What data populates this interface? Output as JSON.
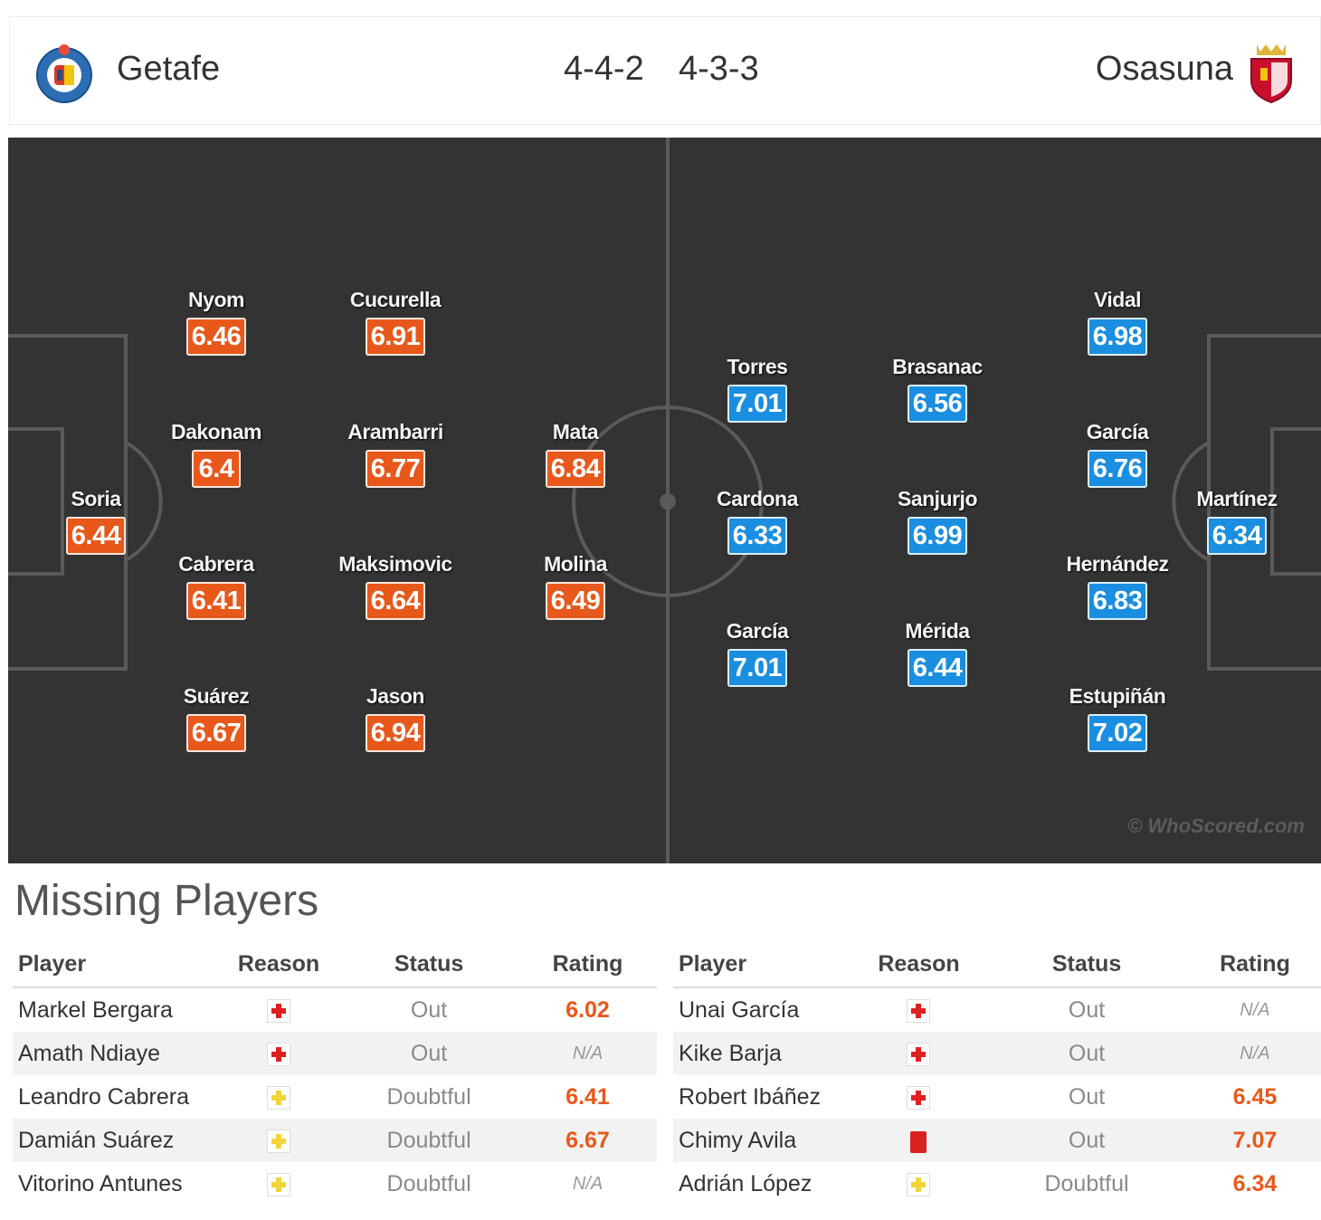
{
  "header": {
    "home_team": "Getafe",
    "home_formation": "4-4-2",
    "away_formation": "4-3-3",
    "away_team": "Osasuna"
  },
  "colors": {
    "home_rating_bg": "#e8581b",
    "away_rating_bg": "#1a8ee0",
    "pitch_bg": "#333333"
  },
  "home_players": [
    {
      "name": "Nyom",
      "rating": "6.46"
    },
    {
      "name": "Cucurella",
      "rating": "6.91"
    },
    {
      "name": "Dakonam",
      "rating": "6.4"
    },
    {
      "name": "Arambarri",
      "rating": "6.77"
    },
    {
      "name": "Mata",
      "rating": "6.84"
    },
    {
      "name": "Soria",
      "rating": "6.44"
    },
    {
      "name": "Cabrera",
      "rating": "6.41"
    },
    {
      "name": "Maksimovic",
      "rating": "6.64"
    },
    {
      "name": "Molina",
      "rating": "6.49"
    },
    {
      "name": "Suárez",
      "rating": "6.67"
    },
    {
      "name": "Jason",
      "rating": "6.94"
    }
  ],
  "away_players": [
    {
      "name": "Vidal",
      "rating": "6.98"
    },
    {
      "name": "Torres",
      "rating": "7.01"
    },
    {
      "name": "Brasanac",
      "rating": "6.56"
    },
    {
      "name": "García",
      "rating": "6.76"
    },
    {
      "name": "Cardona",
      "rating": "6.33"
    },
    {
      "name": "Sanjurjo",
      "rating": "6.99"
    },
    {
      "name": "Martínez",
      "rating": "6.34"
    },
    {
      "name": "Hernández",
      "rating": "6.83"
    },
    {
      "name": "García",
      "rating": "7.01"
    },
    {
      "name": "Mérida",
      "rating": "6.44"
    },
    {
      "name": "Estupiñán",
      "rating": "7.02"
    }
  ],
  "watermark": "© WhoScored.com",
  "missing": {
    "title": "Missing Players",
    "columns": {
      "player": "Player",
      "reason": "Reason",
      "status": "Status",
      "rating": "Rating"
    },
    "home": [
      {
        "player": "Markel Bergara",
        "reason_icon": "injury-icon",
        "status": "Out",
        "rating": "6.02"
      },
      {
        "player": "Amath Ndiaye",
        "reason_icon": "injury-icon",
        "status": "Out",
        "rating": "N/A"
      },
      {
        "player": "Leandro Cabrera",
        "reason_icon": "doubtful-icon",
        "status": "Doubtful",
        "rating": "6.41"
      },
      {
        "player": "Damián Suárez",
        "reason_icon": "doubtful-icon",
        "status": "Doubtful",
        "rating": "6.67"
      },
      {
        "player": "Vitorino Antunes",
        "reason_icon": "doubtful-icon",
        "status": "Doubtful",
        "rating": "N/A"
      }
    ],
    "away": [
      {
        "player": "Unai García",
        "reason_icon": "injury-icon",
        "status": "Out",
        "rating": "N/A"
      },
      {
        "player": "Kike Barja",
        "reason_icon": "injury-icon",
        "status": "Out",
        "rating": "N/A"
      },
      {
        "player": "Robert Ibáñez",
        "reason_icon": "injury-icon",
        "status": "Out",
        "rating": "6.45"
      },
      {
        "player": "Chimy Avila",
        "reason_icon": "red-card-icon",
        "status": "Out",
        "rating": "7.07"
      },
      {
        "player": "Adrián López",
        "reason_icon": "doubtful-icon",
        "status": "Doubtful",
        "rating": "6.34"
      }
    ]
  }
}
